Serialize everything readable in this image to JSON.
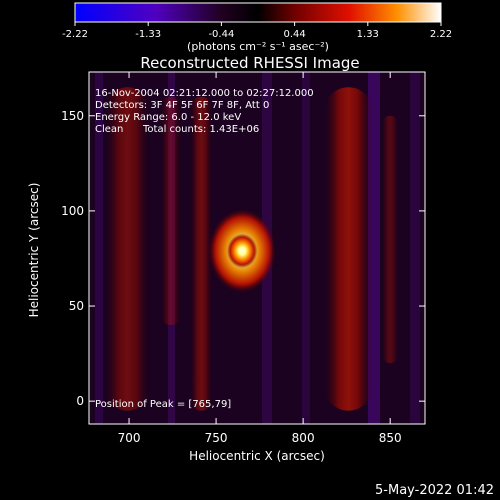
{
  "colorbar": {
    "ticks": [
      "-2.22",
      "-1.33",
      "-0.44",
      "0.44",
      "1.33",
      "2.22"
    ],
    "label": "(photons cm⁻² s⁻¹ asec⁻²)"
  },
  "title": "Reconstructed RHESSI Image",
  "info": {
    "line1": "16-Nov-2004 02:21:12.000 to 02:27:12.000",
    "line2": "Detectors: 3F 4F 5F 6F 7F 8F, Att 0",
    "line3": "Energy Range: 6.0 - 12.0 keV",
    "line4a": "Clean",
    "line4b": "Total counts: 1.43E+06"
  },
  "peak_label": "Position of Peak = [765,79]",
  "footer_date": "5-May-2022 01:42",
  "chart_data": {
    "type": "heatmap",
    "title": "Reconstructed RHESSI Image",
    "xlabel": "Heliocentric X (arcsec)",
    "ylabel": "Heliocentric Y (arcsec)",
    "xlim": [
      677,
      870
    ],
    "ylim": [
      -12,
      173
    ],
    "xticks": [
      700,
      750,
      800,
      850
    ],
    "yticks": [
      0,
      50,
      100,
      150
    ],
    "peak": {
      "x": 765,
      "y": 79
    },
    "colorbar_range": [
      -2.22,
      2.22
    ],
    "colormap": [
      "#0000ff",
      "#7000a0",
      "#000000",
      "#a00000",
      "#ff6000",
      "#ffffa0",
      "#ffffff"
    ],
    "source": {
      "x": 765,
      "y": 79,
      "value": 2.22
    },
    "bands": [
      {
        "x_range": [
          686,
          712
        ],
        "y_range": [
          -5,
          165
        ],
        "level": 0.5
      },
      {
        "x_range": [
          718,
          730
        ],
        "y_range": [
          40,
          160
        ],
        "level": 0.35
      },
      {
        "x_range": [
          735,
          748
        ],
        "y_range": [
          -5,
          160
        ],
        "level": 0.5
      },
      {
        "x_range": [
          812,
          840
        ],
        "y_range": [
          -5,
          165
        ],
        "level": 0.7
      },
      {
        "x_range": [
          845,
          855
        ],
        "y_range": [
          20,
          150
        ],
        "level": 0.35
      }
    ]
  }
}
